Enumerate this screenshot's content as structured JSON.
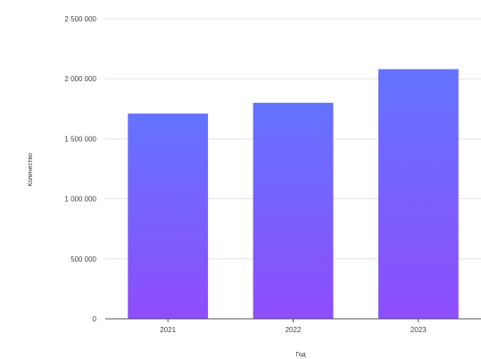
{
  "chart_data": {
    "type": "bar",
    "title": "",
    "categories": [
      "2021",
      "2022",
      "2023"
    ],
    "values": [
      1710000,
      1800000,
      2080000
    ],
    "xlabel": "Год",
    "ylabel": "Количество",
    "ylim": [
      0,
      2500000
    ],
    "yticks": [
      "0",
      "500 000",
      "1 000 000",
      "1 500 000",
      "2 000 000",
      "2 500 000"
    ],
    "yticks_values": [
      0,
      500000,
      1000000,
      1500000,
      2000000,
      2500000
    ],
    "grid": true,
    "legend": "none",
    "colors": {
      "bar_top": "#6373ff",
      "bar_bottom": "#8e4dfb",
      "grid": "#e3e3e3",
      "axis": "#555555"
    }
  }
}
